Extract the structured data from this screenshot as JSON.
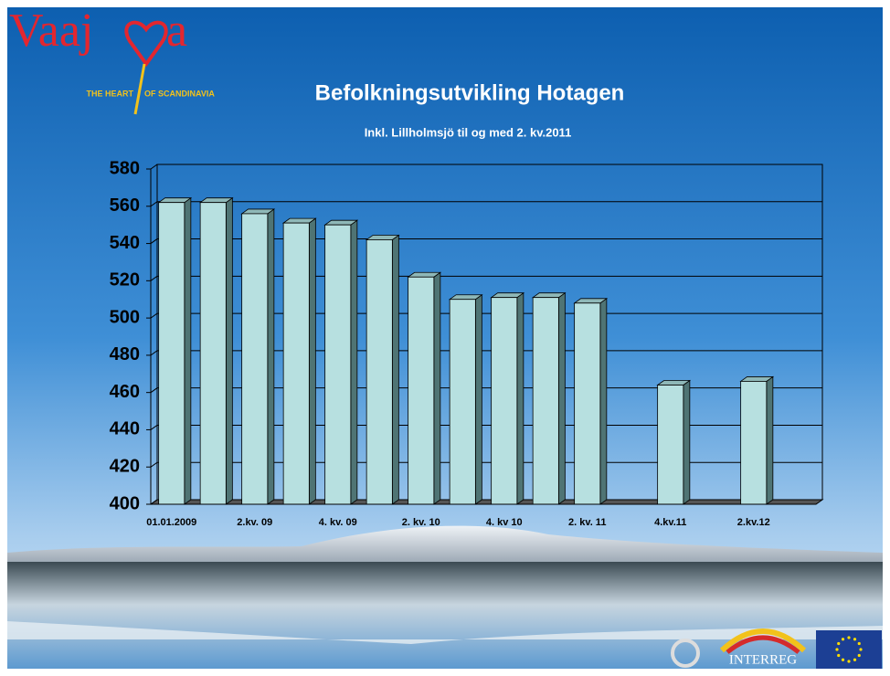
{
  "logo": {
    "left": "Vaaj",
    "right": "a",
    "tagline_left": "THE HEART",
    "tagline_right": "OF SCANDINAVIA"
  },
  "footer_logo": "INTERREG",
  "chart_data": {
    "type": "bar",
    "title": "Befolkningsutvikling Hotagen",
    "subtitle": "Inkl. Lillholmsjö til og med 2. kv.2011",
    "categories": [
      "01.01.2009",
      null,
      "2.kv. 09",
      null,
      "4. kv. 09",
      null,
      "2. kv. 10",
      null,
      "4. kv 10",
      null,
      "2. kv. 11",
      null,
      "4.kv.11",
      null,
      "2.kv.12",
      null
    ],
    "values": [
      562,
      562,
      556,
      551,
      550,
      542,
      522,
      510,
      511,
      511,
      508,
      null,
      464,
      null,
      466,
      null
    ],
    "color": "#b7e0e0",
    "ylim": [
      400,
      580
    ],
    "yticks": [
      400,
      420,
      440,
      460,
      480,
      500,
      520,
      540,
      560,
      580
    ],
    "grid": true
  }
}
